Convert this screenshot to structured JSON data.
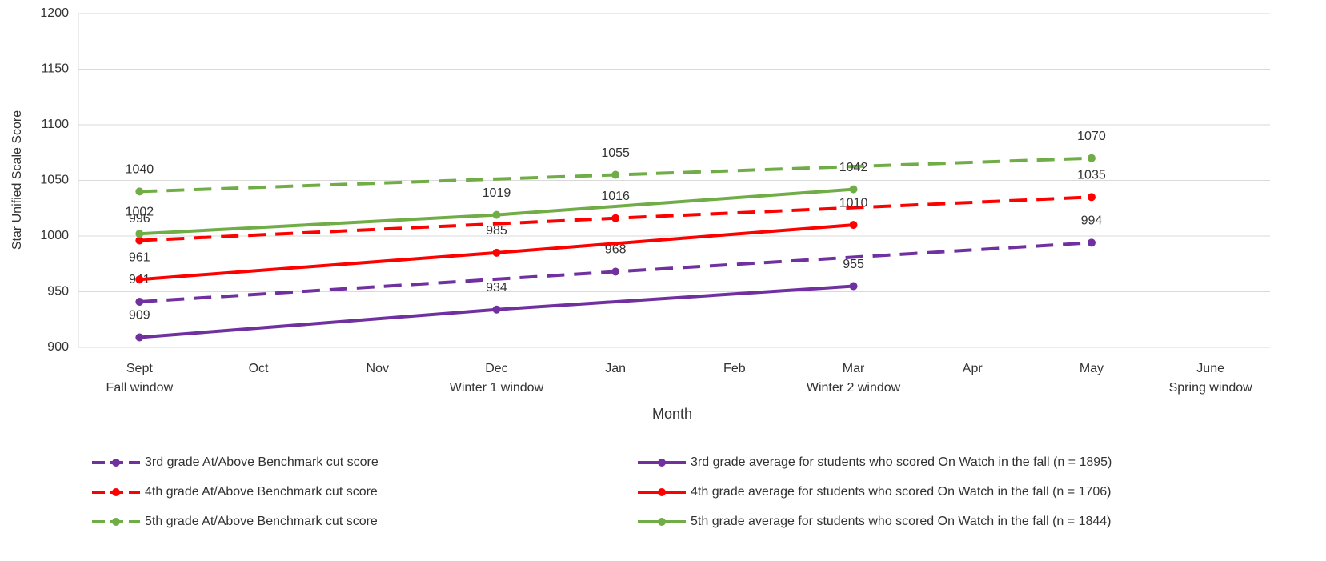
{
  "chart_data": {
    "type": "line",
    "y_label": "Star Unified Scale Score",
    "x_label": "Month",
    "categories": [
      "Sept",
      "Oct",
      "Nov",
      "Dec",
      "Jan",
      "Feb",
      "Mar",
      "Apr",
      "May",
      "June"
    ],
    "category_sublabels": [
      "Fall window",
      null,
      null,
      "Winter 1 window",
      null,
      null,
      "Winter 2 window",
      null,
      null,
      "Spring window"
    ],
    "ylim": [
      900,
      1200
    ],
    "yticks": [
      900,
      950,
      1000,
      1050,
      1100,
      1150,
      1200
    ],
    "grid": true,
    "legend": "bottom",
    "series": [
      {
        "name": "3rd grade At/Above Benchmark cut score",
        "color": "#7030a0",
        "style": "dashed",
        "x": [
          "Sept",
          "Jan",
          "May"
        ],
        "values": [
          941,
          968,
          994
        ]
      },
      {
        "name": "4th grade At/Above Benchmark cut score",
        "color": "#ff0000",
        "style": "dashed",
        "x": [
          "Sept",
          "Jan",
          "May"
        ],
        "values": [
          996,
          1016,
          1035
        ]
      },
      {
        "name": "5th grade At/Above Benchmark cut score",
        "color": "#70ad47",
        "style": "dashed",
        "x": [
          "Sept",
          "Jan",
          "May"
        ],
        "values": [
          1040,
          1055,
          1070
        ]
      },
      {
        "name": "3rd grade average for students who scored On Watch in the fall (n = 1895)",
        "color": "#7030a0",
        "style": "solid",
        "x": [
          "Sept",
          "Dec",
          "Mar"
        ],
        "values": [
          909,
          934,
          955
        ]
      },
      {
        "name": "4th grade average for students who scored On Watch in the fall (n = 1706)",
        "color": "#ff0000",
        "style": "solid",
        "x": [
          "Sept",
          "Dec",
          "Mar"
        ],
        "values": [
          961,
          985,
          1010
        ]
      },
      {
        "name": "5th grade average for students who scored On Watch in the fall (n = 1844)",
        "color": "#70ad47",
        "style": "solid",
        "x": [
          "Sept",
          "Dec",
          "Mar"
        ],
        "values": [
          1002,
          1019,
          1042
        ]
      }
    ]
  }
}
